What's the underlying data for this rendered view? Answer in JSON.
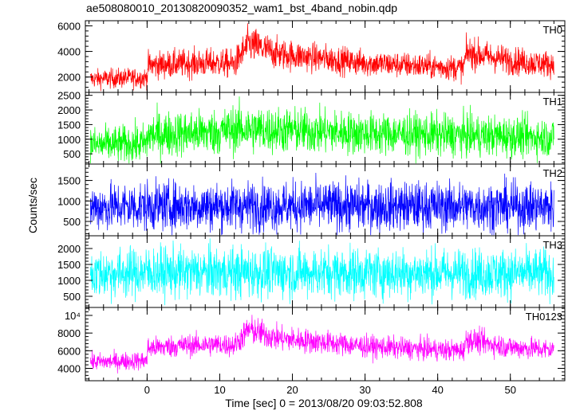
{
  "chart_data": {
    "type": "line",
    "title": "ae508080010_20130820090352_wam1_bst_4band_nobin.qdp",
    "xlabel": "Time [sec] 0 = 2013/08/20 09:03:52.808",
    "ylabel": "Counts/sec",
    "xlim": [
      -8.5,
      57.5
    ],
    "xticks": [
      0,
      10,
      20,
      30,
      40,
      50
    ],
    "grid": false,
    "legend": "none",
    "data_x_range": [
      -7.8,
      56.0
    ],
    "panels": [
      {
        "name": "TH0",
        "color": "#ff0000",
        "ylim": [
          800,
          6400
        ],
        "yticks": [
          {
            "value": 2000,
            "label": "2000"
          },
          {
            "value": 4000,
            "label": "4000"
          },
          {
            "value": 6000,
            "label": "6000"
          }
        ],
        "series": [
          {
            "x": [
              -7.8,
              -4,
              0,
              0.1,
              5,
              10,
              12,
              14,
              18,
              25,
              30,
              35,
              40,
              43.5,
              44,
              47,
              50,
              53,
              56
            ],
            "y": [
              1850,
              1900,
              1950,
              2900,
              3050,
              3100,
              3000,
              4600,
              3800,
              3400,
              3100,
              2950,
              2800,
              2700,
              3900,
              3600,
              3300,
              3100,
              3000
            ],
            "spread": [
              650,
              700,
              700,
              950,
              1000,
              1000,
              1000,
              1300,
              1100,
              1000,
              950,
              900,
              900,
              900,
              1100,
              1050,
              1000,
              950,
              950
            ]
          }
        ]
      },
      {
        "name": "TH1",
        "color": "#00ff00",
        "ylim": [
          150,
          2600
        ],
        "yticks": [
          {
            "value": 500,
            "label": "500"
          },
          {
            "value": 1000,
            "label": "1000"
          },
          {
            "value": 1500,
            "label": "1500"
          },
          {
            "value": 2000,
            "label": "2000"
          },
          {
            "value": 2500,
            "label": "2500"
          }
        ],
        "series": [
          {
            "x": [
              -7.8,
              0,
              0.1,
              10,
              12,
              20,
              30,
              40,
              50,
              56
            ],
            "y": [
              800,
              850,
              1150,
              1250,
              1350,
              1300,
              1200,
              1150,
              1100,
              1050
            ],
            "spread": [
              550,
              600,
              700,
              700,
              750,
              700,
              650,
              650,
              620,
              600
            ]
          }
        ]
      },
      {
        "name": "TH2",
        "color": "#0000ff",
        "ylim": [
          150,
          1900
        ],
        "yticks": [
          {
            "value": 500,
            "label": "500"
          },
          {
            "value": 1000,
            "label": "1000"
          },
          {
            "value": 1500,
            "label": "1500"
          }
        ],
        "series": [
          {
            "x": [
              -7.8,
              0,
              20,
              40,
              56
            ],
            "y": [
              850,
              870,
              880,
              870,
              860
            ],
            "spread": [
              520,
              540,
              540,
              540,
              530
            ]
          }
        ]
      },
      {
        "name": "TH3",
        "color": "#00ffff",
        "ylim": [
          150,
          2400
        ],
        "yticks": [
          {
            "value": 500,
            "label": "500"
          },
          {
            "value": 1000,
            "label": "1000"
          },
          {
            "value": 1500,
            "label": "1500"
          },
          {
            "value": 2000,
            "label": "2000"
          }
        ],
        "series": [
          {
            "x": [
              -7.8,
              0,
              20,
              40,
              56
            ],
            "y": [
              1200,
              1250,
              1250,
              1230,
              1220
            ],
            "spread": [
              700,
              720,
              720,
              700,
              700
            ]
          }
        ]
      },
      {
        "name": "TH0123",
        "color": "#ff00ff",
        "ylim": [
          2600,
          10900
        ],
        "yticks": [
          {
            "value": 4000,
            "label": "4000"
          },
          {
            "value": 6000,
            "label": "6000"
          },
          {
            "value": 8000,
            "label": "8000"
          },
          {
            "value": 10000,
            "label": "10⁴"
          }
        ],
        "series": [
          {
            "x": [
              -7.8,
              0,
              0.1,
              5,
              10,
              12,
              14,
              18,
              25,
              30,
              35,
              40,
              43.5,
              44,
              47,
              50,
              56
            ],
            "y": [
              4700,
              4900,
              6300,
              6600,
              6700,
              6600,
              8400,
              7400,
              6900,
              6500,
              6300,
              6100,
              6000,
              7300,
              6800,
              6400,
              6100
            ],
            "spread": [
              900,
              950,
              1100,
              1150,
              1150,
              1150,
              1500,
              1300,
              1200,
              1150,
              1100,
              1100,
              1100,
              1300,
              1200,
              1150,
              1100
            ]
          }
        ]
      }
    ]
  }
}
